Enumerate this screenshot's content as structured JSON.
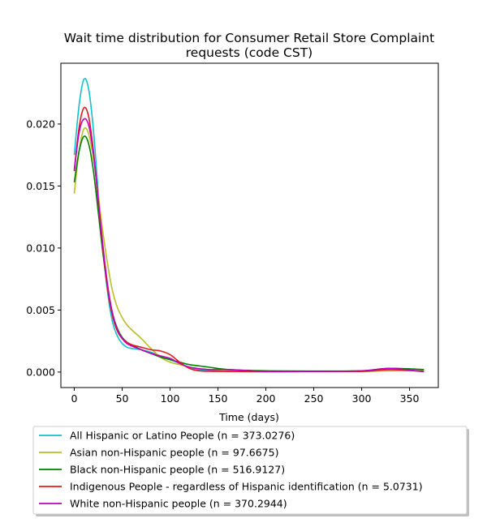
{
  "chart_data": {
    "type": "line",
    "title_line1": "Wait time distribution  for Consumer Retail Store Complaint",
    "title_line2": "requests (code CST)",
    "xlabel": "Time (days)",
    "ylabel": "",
    "xlim": [
      -14,
      380
    ],
    "ylim": [
      -0.00125,
      0.0249
    ],
    "xticks": [
      0,
      50,
      100,
      150,
      200,
      250,
      300,
      350
    ],
    "xtick_labels": [
      "0",
      "50",
      "100",
      "150",
      "200",
      "250",
      "300",
      "350"
    ],
    "yticks": [
      0.0,
      0.005,
      0.01,
      0.015,
      0.02
    ],
    "ytick_labels": [
      "0.000",
      "0.005",
      "0.010",
      "0.015",
      "0.020"
    ],
    "grid": false,
    "legend_position": "below",
    "series": [
      {
        "name": "All Hispanic or Latino People (n = 373.0276)",
        "color": "#17becf",
        "points": [
          [
            0,
            0.0175
          ],
          [
            5,
            0.0215
          ],
          [
            10,
            0.0236
          ],
          [
            15,
            0.0228
          ],
          [
            20,
            0.0195
          ],
          [
            25,
            0.0145
          ],
          [
            30,
            0.0098
          ],
          [
            35,
            0.0063
          ],
          [
            40,
            0.004
          ],
          [
            45,
            0.0029
          ],
          [
            50,
            0.0023
          ],
          [
            55,
            0.002
          ],
          [
            60,
            0.0019
          ],
          [
            70,
            0.0018
          ],
          [
            80,
            0.0016
          ],
          [
            90,
            0.0013
          ],
          [
            100,
            0.001
          ],
          [
            110,
            0.0007
          ],
          [
            120,
            0.0004
          ],
          [
            130,
            0.0002
          ],
          [
            150,
            0.0001
          ],
          [
            200,
            5e-05
          ],
          [
            250,
            5e-05
          ],
          [
            300,
            5e-05
          ],
          [
            330,
            0.0001
          ],
          [
            365,
            0.0001
          ]
        ]
      },
      {
        "name": "Asian non-Hispanic people (n = 97.6675)",
        "color": "#bcbd22",
        "points": [
          [
            0,
            0.0144
          ],
          [
            5,
            0.0178
          ],
          [
            10,
            0.0196
          ],
          [
            15,
            0.0192
          ],
          [
            20,
            0.0172
          ],
          [
            25,
            0.0143
          ],
          [
            30,
            0.0112
          ],
          [
            35,
            0.0086
          ],
          [
            40,
            0.0065
          ],
          [
            45,
            0.0052
          ],
          [
            50,
            0.0044
          ],
          [
            55,
            0.0038
          ],
          [
            60,
            0.0034
          ],
          [
            70,
            0.0027
          ],
          [
            80,
            0.0019
          ],
          [
            90,
            0.0012
          ],
          [
            100,
            0.0008
          ],
          [
            110,
            0.0006
          ],
          [
            120,
            0.0004
          ],
          [
            140,
            0.0002
          ],
          [
            160,
            0.0001
          ],
          [
            200,
            5e-05
          ],
          [
            250,
            5e-05
          ],
          [
            300,
            5e-05
          ],
          [
            330,
            0.0001
          ],
          [
            365,
            0.0001
          ]
        ]
      },
      {
        "name": "Black non-Hispanic people (n = 516.9127)",
        "color": "#008000",
        "points": [
          [
            0,
            0.0153
          ],
          [
            5,
            0.0178
          ],
          [
            10,
            0.019
          ],
          [
            15,
            0.0184
          ],
          [
            20,
            0.0162
          ],
          [
            25,
            0.0129
          ],
          [
            30,
            0.0095
          ],
          [
            35,
            0.0067
          ],
          [
            40,
            0.0047
          ],
          [
            45,
            0.0035
          ],
          [
            50,
            0.0028
          ],
          [
            55,
            0.0024
          ],
          [
            60,
            0.0022
          ],
          [
            70,
            0.0018
          ],
          [
            80,
            0.0015
          ],
          [
            90,
            0.0012
          ],
          [
            100,
            0.001
          ],
          [
            110,
            0.0008
          ],
          [
            120,
            0.0006
          ],
          [
            140,
            0.0004
          ],
          [
            160,
            0.0002
          ],
          [
            200,
            0.0001
          ],
          [
            250,
            8e-05
          ],
          [
            300,
            0.0001
          ],
          [
            330,
            0.0003
          ],
          [
            365,
            0.0002
          ]
        ]
      },
      {
        "name": "Indigenous People - regardless of Hispanic identification (n = 5.0731)",
        "color": "#e31a1c",
        "points": [
          [
            0,
            0.0163
          ],
          [
            5,
            0.0197
          ],
          [
            10,
            0.0213
          ],
          [
            15,
            0.0206
          ],
          [
            20,
            0.0178
          ],
          [
            25,
            0.0138
          ],
          [
            30,
            0.0098
          ],
          [
            35,
            0.0066
          ],
          [
            40,
            0.0045
          ],
          [
            45,
            0.0033
          ],
          [
            50,
            0.0027
          ],
          [
            55,
            0.0024
          ],
          [
            60,
            0.0022
          ],
          [
            70,
            0.002
          ],
          [
            80,
            0.0018
          ],
          [
            90,
            0.0017
          ],
          [
            100,
            0.0014
          ],
          [
            110,
            0.0008
          ],
          [
            120,
            0.0003
          ],
          [
            130,
            0.0001
          ],
          [
            150,
            5e-05
          ],
          [
            200,
            3e-05
          ],
          [
            250,
            5e-05
          ],
          [
            300,
            5e-05
          ],
          [
            330,
            0.0002
          ],
          [
            365,
            5e-05
          ]
        ]
      },
      {
        "name": "White non-Hispanic people (n = 370.2944)",
        "color": "#bf00bf",
        "points": [
          [
            0,
            0.0162
          ],
          [
            5,
            0.0193
          ],
          [
            10,
            0.0204
          ],
          [
            15,
            0.0199
          ],
          [
            20,
            0.0176
          ],
          [
            25,
            0.0139
          ],
          [
            30,
            0.0101
          ],
          [
            35,
            0.0069
          ],
          [
            40,
            0.0047
          ],
          [
            45,
            0.0034
          ],
          [
            50,
            0.0027
          ],
          [
            55,
            0.0023
          ],
          [
            60,
            0.0021
          ],
          [
            70,
            0.0018
          ],
          [
            80,
            0.0015
          ],
          [
            90,
            0.0013
          ],
          [
            100,
            0.0011
          ],
          [
            110,
            0.0007
          ],
          [
            120,
            0.0004
          ],
          [
            140,
            0.0002
          ],
          [
            160,
            0.0002
          ],
          [
            200,
            5e-05
          ],
          [
            250,
            5e-05
          ],
          [
            300,
            0.0001
          ],
          [
            330,
            0.0003
          ],
          [
            365,
            3e-05
          ]
        ]
      }
    ]
  }
}
